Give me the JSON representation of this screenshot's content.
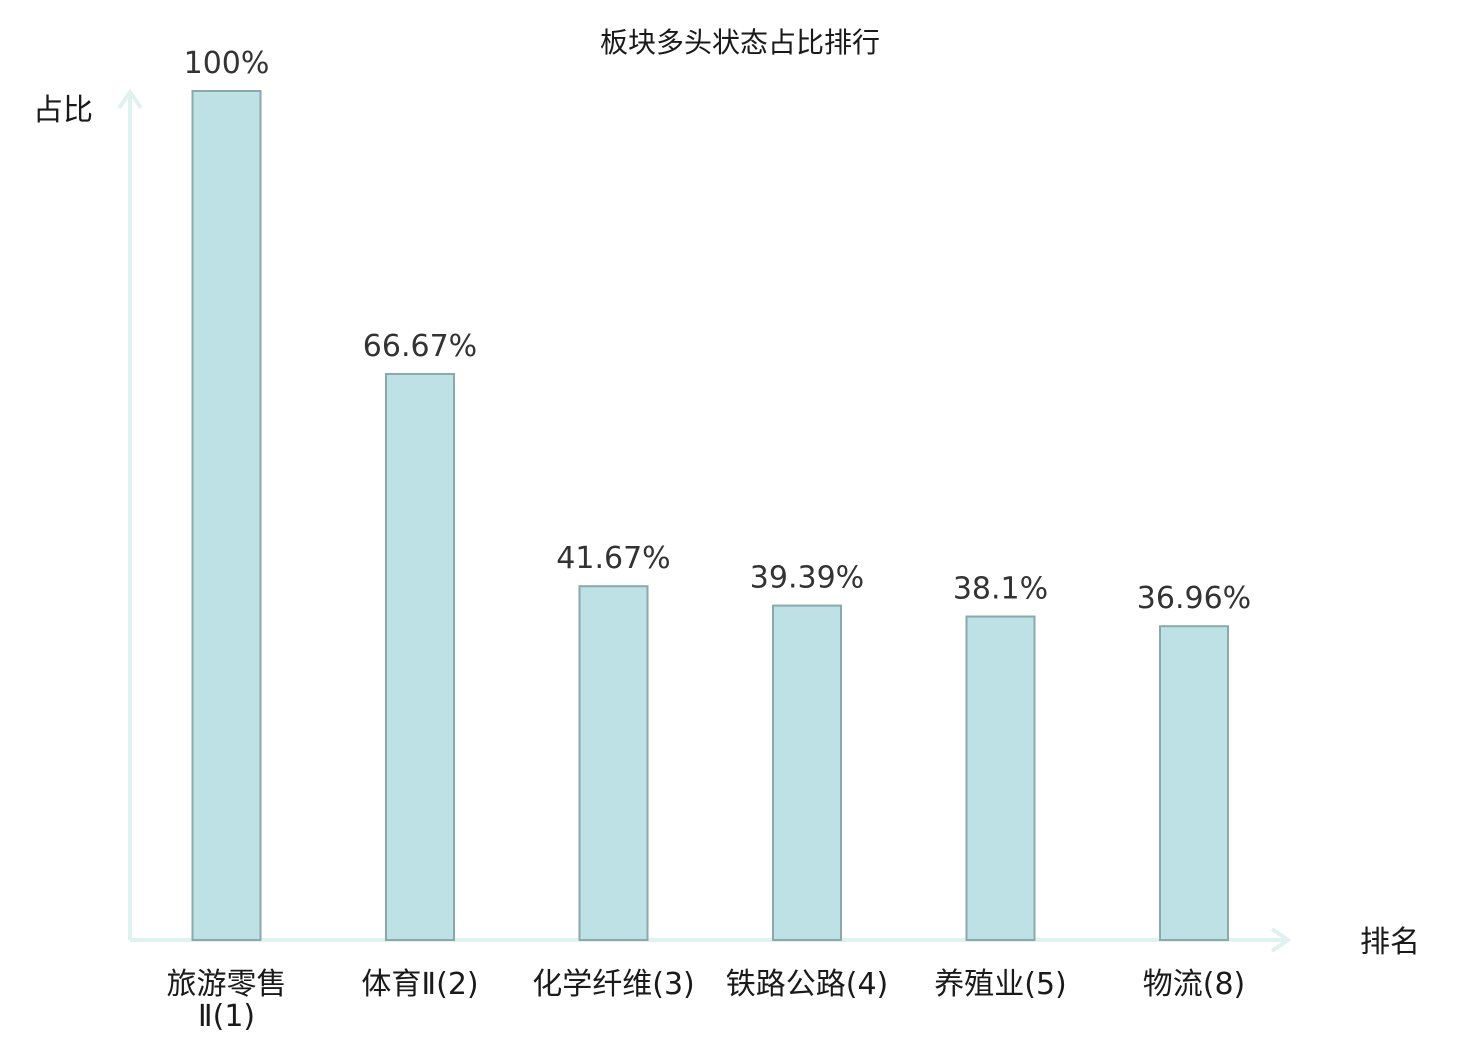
{
  "chart_data": {
    "type": "bar",
    "title": "板块多头状态占比排行",
    "ylabel": "占比",
    "xlabel": "排名",
    "ylim": [
      0,
      100
    ],
    "grid": false,
    "legend": "none",
    "categories": [
      {
        "name": "旅游零售",
        "rank": "Ⅱ(1)",
        "wrap": true,
        "highlight": false
      },
      {
        "name": "体育",
        "rank": "Ⅱ(2)",
        "wrap": false,
        "highlight": false
      },
      {
        "name": "化学纤维",
        "rank": "(3)",
        "wrap": false,
        "highlight": false
      },
      {
        "name": "铁路公路",
        "rank": "(4)",
        "wrap": false,
        "highlight": false
      },
      {
        "name": "养殖业",
        "rank": "(5)",
        "wrap": false,
        "highlight": false
      },
      {
        "name": "物流",
        "rank": "(8)",
        "wrap": false,
        "highlight": true
      }
    ],
    "values": [
      100,
      66.67,
      41.67,
      39.39,
      38.1,
      36.96
    ],
    "value_labels": [
      "100%",
      "66.67%",
      "41.67%",
      "39.39%",
      "38.1%",
      "36.96%"
    ],
    "colors": {
      "bar_fill": "#bde1e4",
      "bar_stroke": "#8aa9ab",
      "axis": "#e0f2ef",
      "highlight_text": "#e0141e",
      "text": "#1a1a1a"
    }
  }
}
